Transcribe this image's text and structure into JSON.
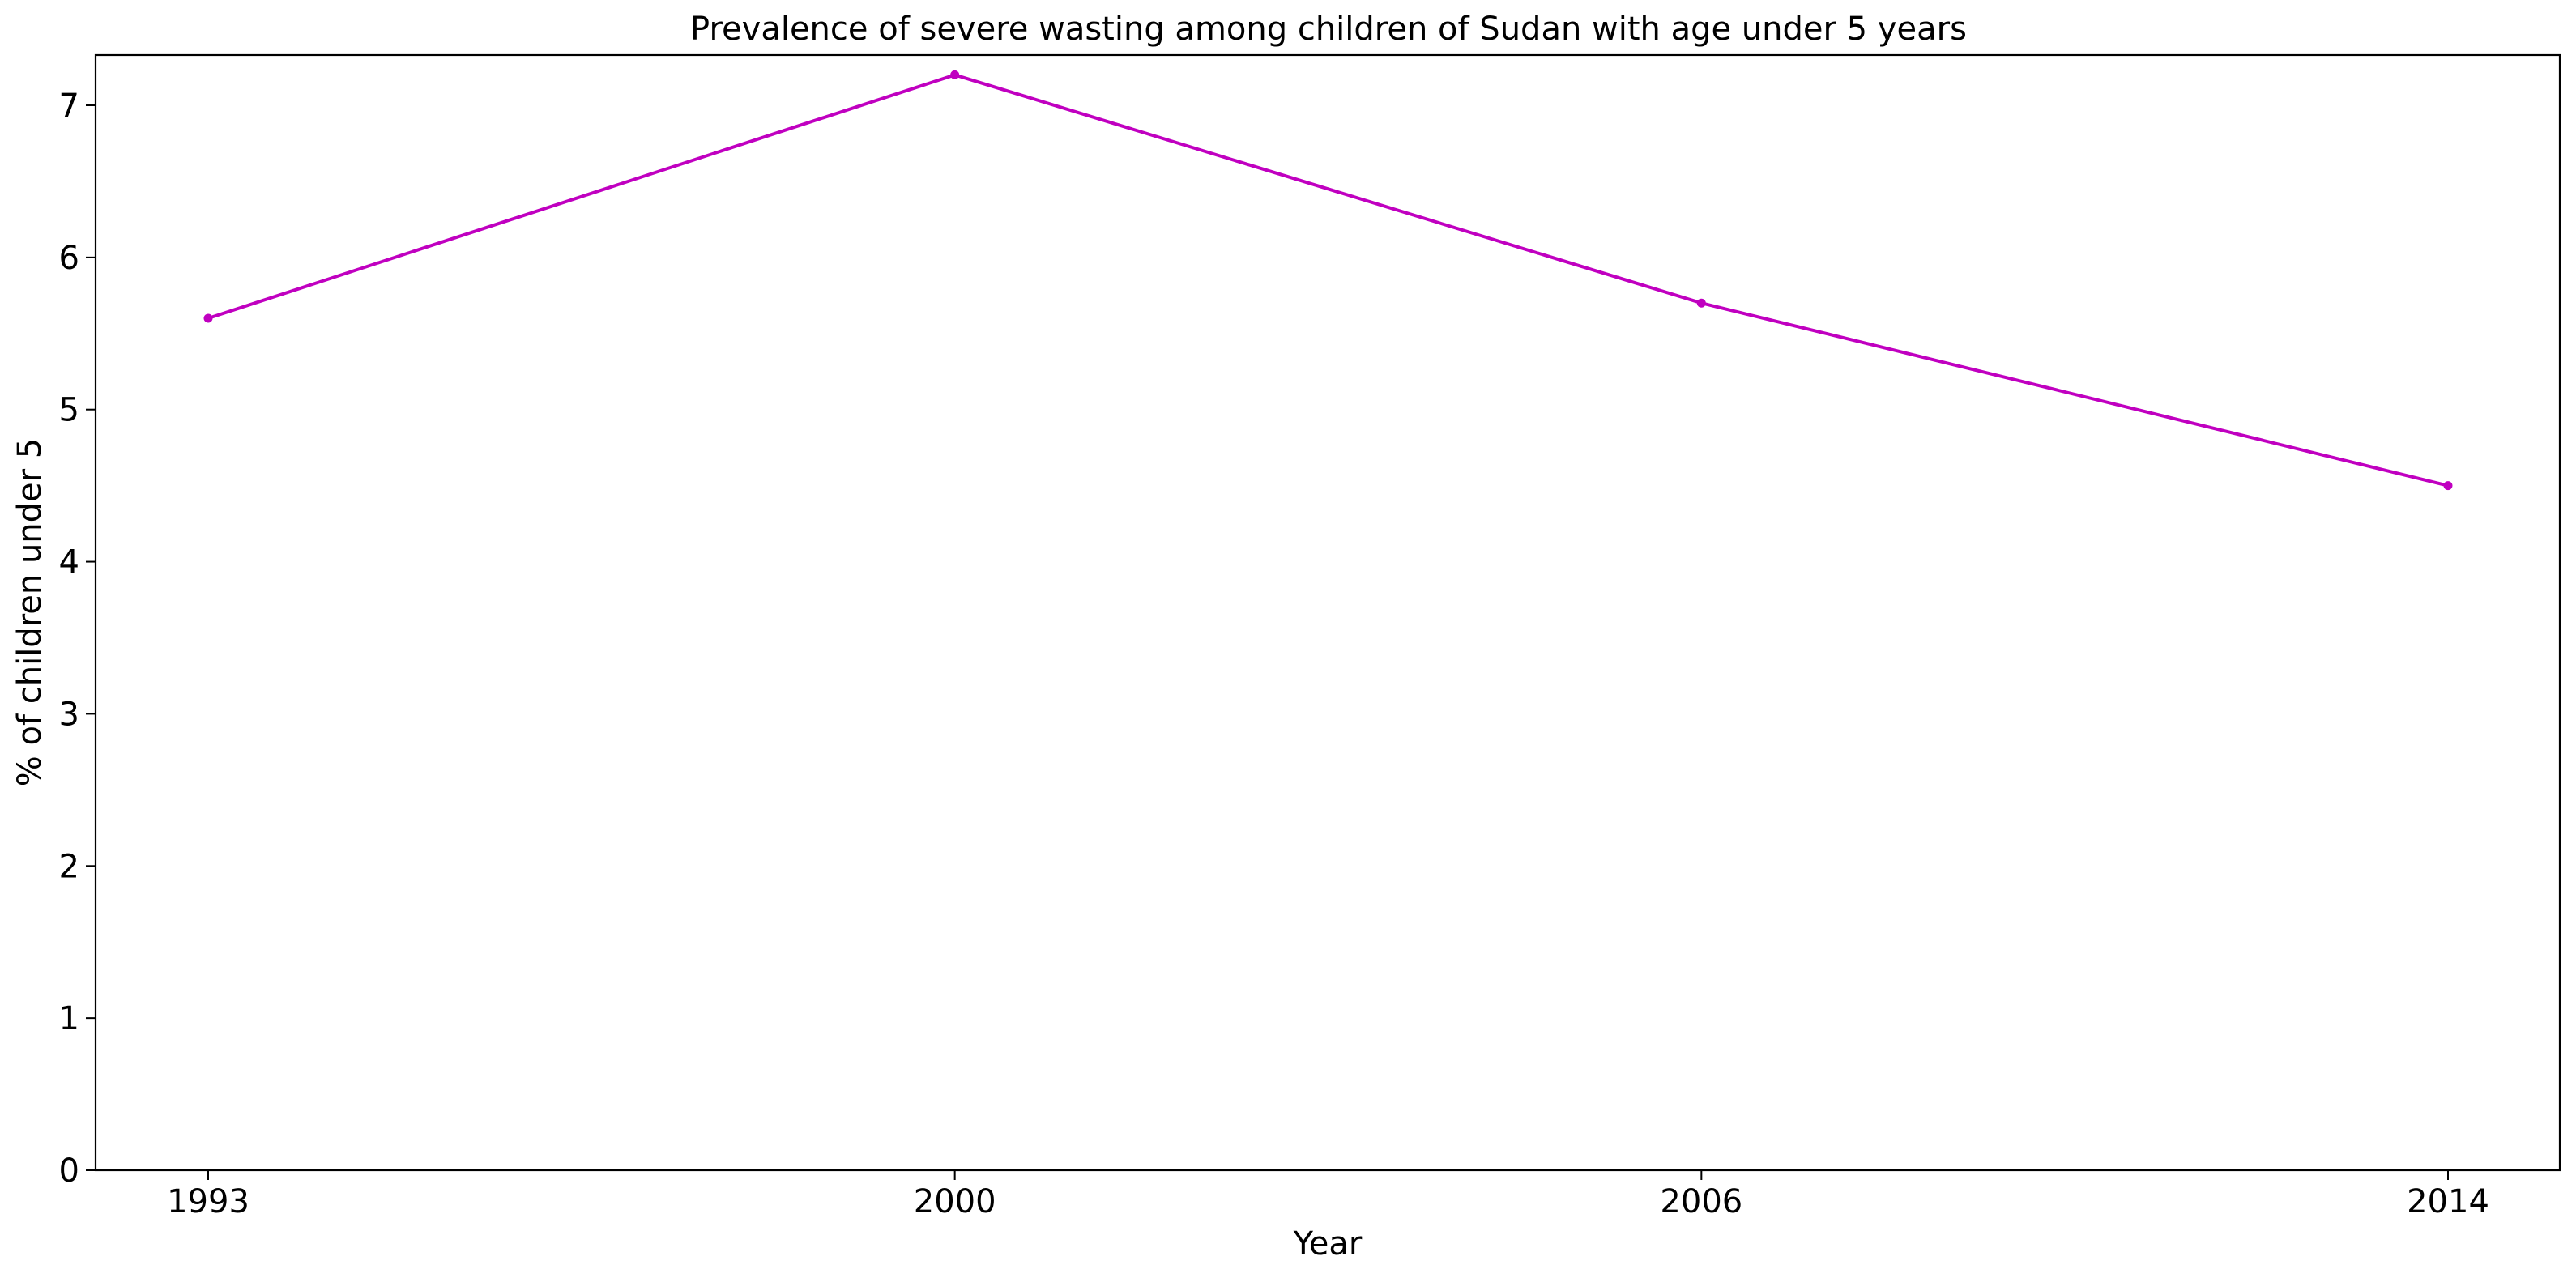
{
  "chart_data": {
    "type": "line",
    "title": "Prevalence of severe wasting among children of Sudan with age under 5 years",
    "xlabel": "Year",
    "ylabel": "% of children under 5",
    "categories": [
      "1993",
      "2000",
      "2006",
      "2014"
    ],
    "series": [
      {
        "values": [
          5.6,
          7.2,
          5.7,
          4.5
        ],
        "color": "#c000c0"
      }
    ],
    "ylim": [
      0,
      7.33
    ],
    "yticks": [
      "0",
      "1",
      "2",
      "3",
      "4",
      "5",
      "6",
      "7"
    ],
    "grid": false,
    "legend": false
  }
}
